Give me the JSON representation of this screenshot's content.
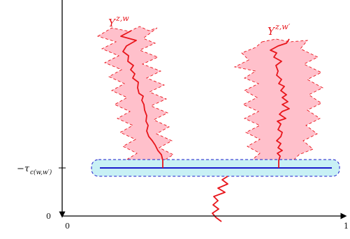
{
  "labels": {
    "process_left": "Y",
    "process_left_sup": "z,w",
    "process_right": "Y",
    "process_right_sup": "z,w′",
    "tau_minus": "−τ",
    "tau_sub": "c(w,w′)",
    "y_zero": "0",
    "x_zero": "0",
    "x_one": "1"
  },
  "colors": {
    "red_path": "#e8151b",
    "pink_fill": "#ffc0cb",
    "blue_line": "#1a1acc",
    "cyan_fill": "#c8f0f5",
    "axis": "#000000"
  }
}
